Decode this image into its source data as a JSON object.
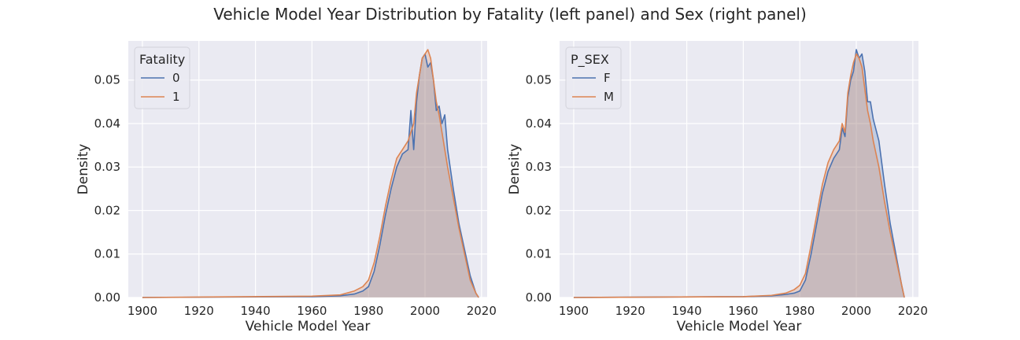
{
  "figure": {
    "title": "Vehicle Model Year Distribution by Fatality (left panel)  and Sex (right panel)"
  },
  "colors": {
    "background": "#eaeaf2",
    "grid": "#ffffff",
    "series_blue": "#4c72b0",
    "series_orange": "#dd8452",
    "fill_overlap": "#c9b1b3"
  },
  "chart_data": [
    {
      "type": "area",
      "xlabel": "Vehicle Model Year",
      "ylabel": "Density",
      "xlim": [
        1895,
        2022
      ],
      "ylim": [
        0,
        0.059
      ],
      "xticks": [
        1900,
        1920,
        1940,
        1960,
        1980,
        2000,
        2020
      ],
      "xtick_labels": [
        "1900",
        "1920",
        "1940",
        "1960",
        "1980",
        "2000",
        "2020"
      ],
      "yticks": [
        0,
        0.01,
        0.02,
        0.03,
        0.04,
        0.05
      ],
      "ytick_labels": [
        "0.00",
        "0.01",
        "0.02",
        "0.03",
        "0.04",
        "0.05"
      ],
      "grid": true,
      "legend": {
        "title": "Fatality",
        "placement": "top-left"
      },
      "series": [
        {
          "name": "0",
          "color": "#4c72b0",
          "x": [
            1900,
            1960,
            1970,
            1975,
            1978,
            1980,
            1982,
            1984,
            1986,
            1988,
            1990,
            1992,
            1994,
            1995,
            1996,
            1997,
            1998,
            1999,
            2000,
            2001,
            2002,
            2003,
            2004,
            2005,
            2006,
            2007,
            2008,
            2010,
            2012,
            2014,
            2016,
            2018,
            2019
          ],
          "y": [
            0,
            0.0002,
            0.0004,
            0.0008,
            0.0015,
            0.0025,
            0.006,
            0.012,
            0.019,
            0.025,
            0.03,
            0.033,
            0.034,
            0.043,
            0.034,
            0.045,
            0.051,
            0.055,
            0.056,
            0.053,
            0.054,
            0.05,
            0.043,
            0.044,
            0.04,
            0.042,
            0.034,
            0.025,
            0.017,
            0.011,
            0.005,
            0.001,
            0
          ]
        },
        {
          "name": "1",
          "color": "#dd8452",
          "x": [
            1900,
            1960,
            1970,
            1975,
            1978,
            1980,
            1982,
            1984,
            1986,
            1988,
            1990,
            1992,
            1994,
            1996,
            1997,
            1998,
            1999,
            2000,
            2001,
            2002,
            2003,
            2004,
            2005,
            2006,
            2008,
            2010,
            2012,
            2014,
            2016,
            2018,
            2019
          ],
          "y": [
            0,
            0.0003,
            0.0006,
            0.0015,
            0.0025,
            0.004,
            0.008,
            0.014,
            0.021,
            0.027,
            0.032,
            0.034,
            0.036,
            0.04,
            0.047,
            0.051,
            0.055,
            0.056,
            0.057,
            0.055,
            0.05,
            0.045,
            0.042,
            0.038,
            0.03,
            0.023,
            0.016,
            0.01,
            0.004,
            0.001,
            0
          ]
        }
      ]
    },
    {
      "type": "area",
      "xlabel": "Vehicle Model Year",
      "ylabel": "Density",
      "xlim": [
        1895,
        2022
      ],
      "ylim": [
        0,
        0.059
      ],
      "xticks": [
        1900,
        1920,
        1940,
        1960,
        1980,
        2000,
        2020
      ],
      "xtick_labels": [
        "1900",
        "1920",
        "1940",
        "1960",
        "1980",
        "2000",
        "2020"
      ],
      "yticks": [
        0,
        0.01,
        0.02,
        0.03,
        0.04,
        0.05
      ],
      "ytick_labels": [
        "0.00",
        "0.01",
        "0.02",
        "0.03",
        "0.04",
        "0.05"
      ],
      "grid": true,
      "legend": {
        "title": "P_SEX",
        "placement": "top-left"
      },
      "series": [
        {
          "name": "F",
          "color": "#4c72b0",
          "x": [
            1900,
            1960,
            1970,
            1975,
            1978,
            1980,
            1982,
            1984,
            1986,
            1988,
            1990,
            1992,
            1994,
            1995,
            1996,
            1997,
            1998,
            1999,
            2000,
            2001,
            2002,
            2003,
            2004,
            2005,
            2006,
            2008,
            2010,
            2012,
            2014,
            2016,
            2017
          ],
          "y": [
            0,
            0.0002,
            0.0004,
            0.0007,
            0.001,
            0.0015,
            0.004,
            0.01,
            0.017,
            0.024,
            0.029,
            0.032,
            0.034,
            0.039,
            0.037,
            0.046,
            0.05,
            0.052,
            0.057,
            0.055,
            0.056,
            0.052,
            0.045,
            0.045,
            0.041,
            0.036,
            0.026,
            0.017,
            0.01,
            0.003,
            0
          ]
        },
        {
          "name": "M",
          "color": "#dd8452",
          "x": [
            1900,
            1960,
            1970,
            1975,
            1978,
            1980,
            1982,
            1984,
            1986,
            1988,
            1990,
            1992,
            1994,
            1995,
            1996,
            1997,
            1998,
            1999,
            2000,
            2001,
            2002,
            2003,
            2004,
            2005,
            2006,
            2008,
            2010,
            2012,
            2014,
            2016,
            2017
          ],
          "y": [
            0,
            0.0002,
            0.0005,
            0.001,
            0.0018,
            0.0028,
            0.0055,
            0.012,
            0.019,
            0.026,
            0.031,
            0.034,
            0.036,
            0.04,
            0.038,
            0.047,
            0.051,
            0.054,
            0.056,
            0.055,
            0.053,
            0.048,
            0.043,
            0.04,
            0.036,
            0.03,
            0.022,
            0.015,
            0.009,
            0.003,
            0
          ]
        }
      ]
    }
  ]
}
